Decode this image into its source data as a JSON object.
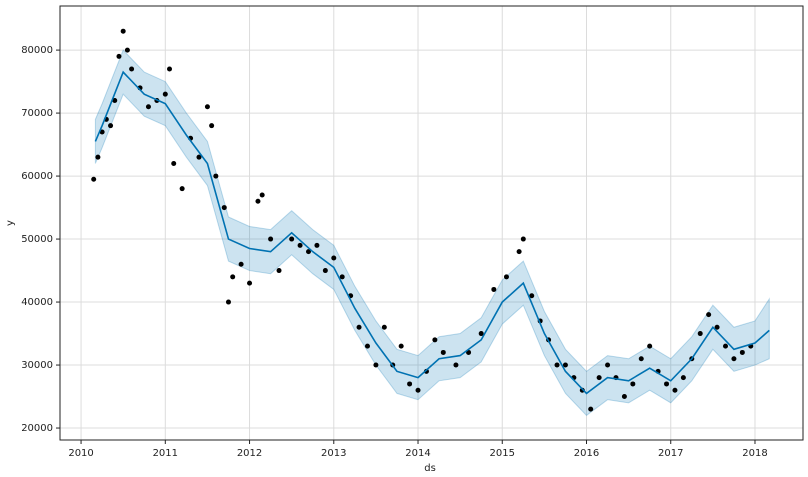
{
  "chart_data": {
    "type": "line",
    "x_label": "ds",
    "y_label": "y",
    "xlim": [
      2009.75,
      2018.57
    ],
    "ylim": [
      18100,
      87000
    ],
    "xticks": [
      2010,
      2011,
      2012,
      2013,
      2014,
      2015,
      2016,
      2017,
      2018
    ],
    "yticks": [
      20000,
      30000,
      40000,
      50000,
      60000,
      70000,
      80000
    ],
    "grid": true,
    "forecast": {
      "color": "#0072B2",
      "band_color": "#0072B2",
      "x": [
        2010.17,
        2010.25,
        2010.5,
        2010.75,
        2011.0,
        2011.25,
        2011.5,
        2011.75,
        2012.0,
        2012.25,
        2012.5,
        2012.75,
        2013.0,
        2013.25,
        2013.5,
        2013.75,
        2014.0,
        2014.25,
        2014.5,
        2014.75,
        2015.0,
        2015.25,
        2015.5,
        2015.75,
        2016.0,
        2016.25,
        2016.5,
        2016.75,
        2017.0,
        2017.25,
        2017.5,
        2017.75,
        2018.0,
        2018.17
      ],
      "yhat": [
        65500,
        68000,
        76500,
        73000,
        71500,
        66500,
        62000,
        50000,
        48500,
        48000,
        51000,
        48000,
        45500,
        39000,
        33500,
        29000,
        28000,
        31000,
        31500,
        34000,
        40000,
        43000,
        35000,
        29000,
        25500,
        28000,
        27500,
        29500,
        27500,
        31000,
        36000,
        32500,
        33500,
        35500
      ],
      "lower": [
        62000,
        64500,
        73000,
        69500,
        68000,
        63000,
        58500,
        46500,
        45000,
        44500,
        47500,
        44500,
        42000,
        35500,
        30000,
        25500,
        24500,
        27500,
        28000,
        30500,
        36500,
        39500,
        31500,
        25500,
        22000,
        24500,
        24000,
        26000,
        24000,
        27500,
        32500,
        29000,
        30000,
        31000
      ],
      "upper": [
        69000,
        71500,
        80000,
        76500,
        75000,
        70000,
        65500,
        53500,
        52000,
        51500,
        54500,
        51500,
        49000,
        42500,
        37000,
        32500,
        31500,
        34500,
        35000,
        37500,
        43500,
        46500,
        38500,
        32500,
        29000,
        31500,
        31000,
        33000,
        31000,
        34500,
        39500,
        36000,
        37000,
        40500
      ]
    },
    "observed": {
      "color": "#000000",
      "x": [
        2010.15,
        2010.2,
        2010.25,
        2010.3,
        2010.35,
        2010.4,
        2010.45,
        2010.5,
        2010.55,
        2010.6,
        2010.7,
        2010.8,
        2010.9,
        2011.0,
        2011.05,
        2011.1,
        2011.2,
        2011.3,
        2011.4,
        2011.5,
        2011.55,
        2011.6,
        2011.7,
        2011.75,
        2011.8,
        2011.9,
        2012.0,
        2012.1,
        2012.15,
        2012.25,
        2012.35,
        2012.5,
        2012.6,
        2012.7,
        2012.8,
        2012.9,
        2013.0,
        2013.1,
        2013.2,
        2013.3,
        2013.4,
        2013.5,
        2013.6,
        2013.7,
        2013.8,
        2013.9,
        2014.0,
        2014.1,
        2014.2,
        2014.3,
        2014.45,
        2014.6,
        2014.75,
        2014.9,
        2015.05,
        2015.2,
        2015.25,
        2015.35,
        2015.45,
        2015.55,
        2015.65,
        2015.75,
        2015.85,
        2015.95,
        2016.05,
        2016.15,
        2016.25,
        2016.35,
        2016.45,
        2016.55,
        2016.65,
        2016.75,
        2016.85,
        2016.95,
        2017.05,
        2017.15,
        2017.25,
        2017.35,
        2017.45,
        2017.55,
        2017.65,
        2017.75,
        2017.85,
        2017.95
      ],
      "y": [
        59500,
        63000,
        67000,
        69000,
        68000,
        72000,
        79000,
        83000,
        80000,
        77000,
        74000,
        71000,
        72000,
        73000,
        77000,
        62000,
        58000,
        66000,
        63000,
        71000,
        68000,
        60000,
        55000,
        40000,
        44000,
        46000,
        43000,
        56000,
        57000,
        50000,
        45000,
        50000,
        49000,
        48000,
        49000,
        45000,
        47000,
        44000,
        41000,
        36000,
        33000,
        30000,
        36000,
        30000,
        33000,
        27000,
        26000,
        29000,
        34000,
        32000,
        30000,
        32000,
        35000,
        42000,
        44000,
        48000,
        50000,
        41000,
        37000,
        34000,
        30000,
        30000,
        28000,
        26000,
        23000,
        28000,
        30000,
        28000,
        25000,
        27000,
        31000,
        33000,
        29000,
        27000,
        26000,
        28000,
        31000,
        35000,
        38000,
        36000,
        33000,
        31000,
        32000,
        33000
      ]
    }
  }
}
